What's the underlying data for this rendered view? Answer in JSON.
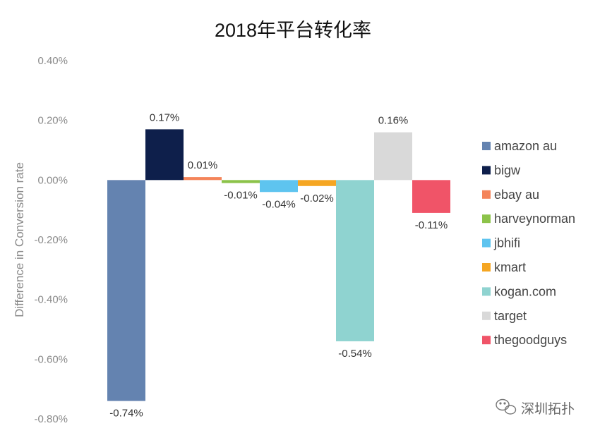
{
  "chart_data": {
    "type": "bar",
    "title": "2018年平台转化率",
    "ylabel": "Difference in Conversion rate",
    "xlabel": "",
    "ylim": [
      -0.8,
      0.4
    ],
    "yticks": [
      0.4,
      0.2,
      0.0,
      -0.2,
      -0.4,
      -0.6,
      -0.8
    ],
    "ytick_labels": [
      "0.40%",
      "0.20%",
      "0.00%",
      "-0.20%",
      "-0.40%",
      "-0.60%",
      "-0.80%"
    ],
    "grid": false,
    "legend_position": "right",
    "categories": [
      "amazon au",
      "bigw",
      "ebay au",
      "harveynorman",
      "jbhifi",
      "kmart",
      "kogan.com",
      "target",
      "thegoodguys"
    ],
    "values": [
      -0.74,
      0.17,
      0.01,
      -0.01,
      -0.04,
      -0.02,
      -0.54,
      0.16,
      -0.11
    ],
    "data_labels": [
      "-0.74%",
      "0.17%",
      "0.01%",
      "-0.01%",
      "-0.04%",
      "-0.02%",
      "-0.54%",
      "0.16%",
      "-0.11%"
    ],
    "colors": [
      "#6483b0",
      "#0e1f4b",
      "#f4845a",
      "#8cc34a",
      "#5ec4ef",
      "#f5a623",
      "#8fd3d0",
      "#d9d9d9",
      "#f05468"
    ]
  },
  "watermark": {
    "icon": "wechat-icon",
    "text": "深圳拓扑"
  }
}
